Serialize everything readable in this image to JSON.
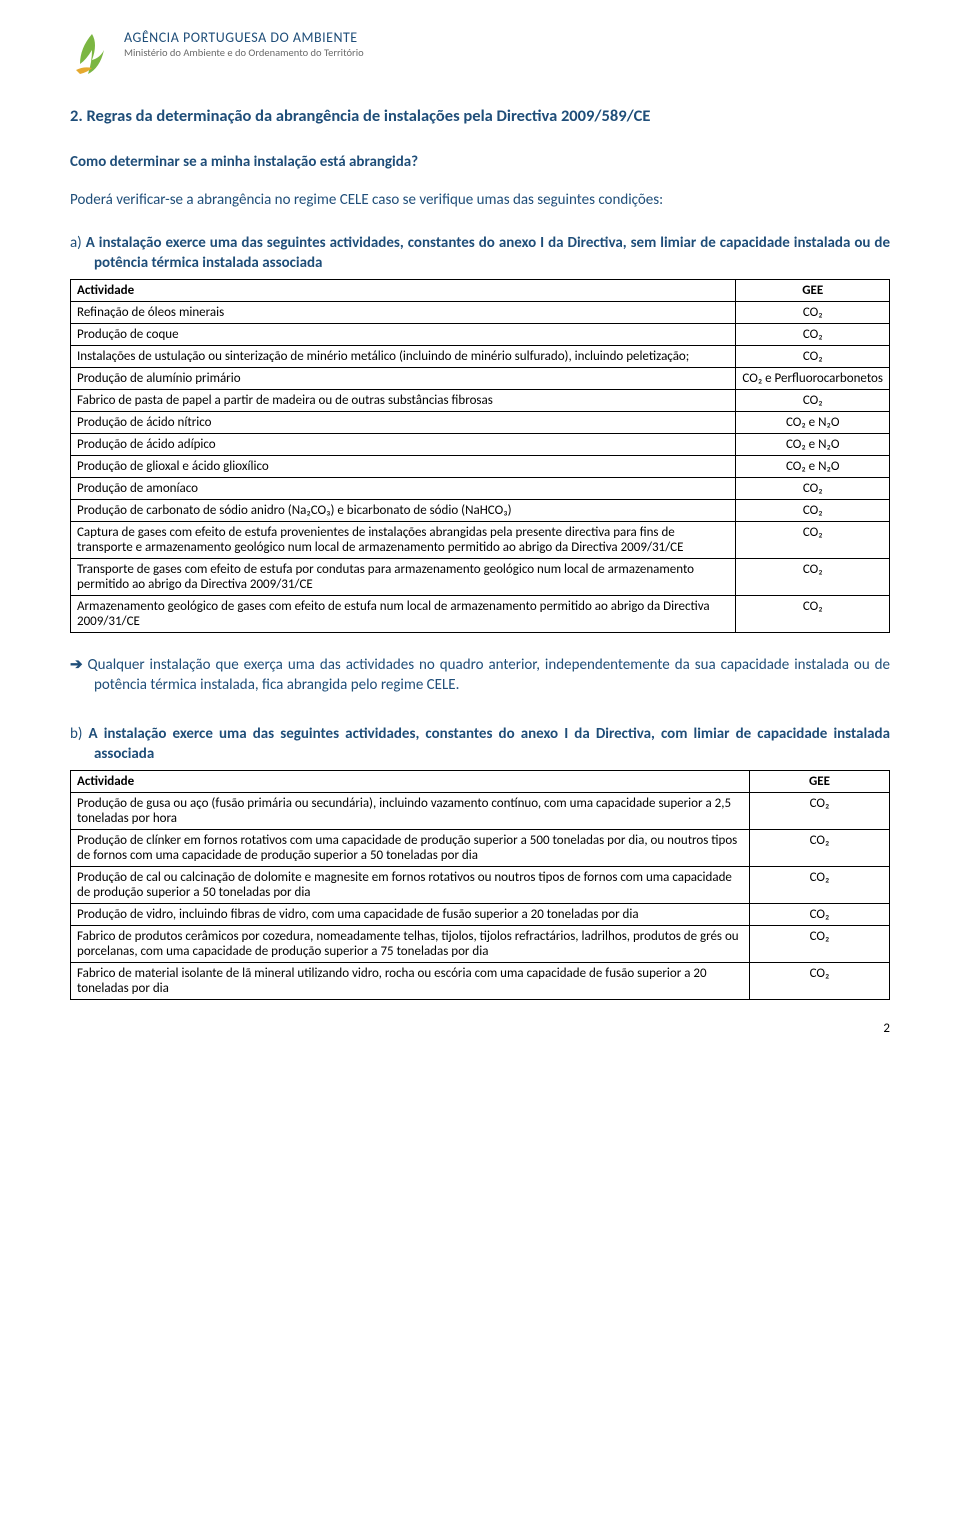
{
  "header": {
    "agency_name": "AGÊNCIA PORTUGUESA DO AMBIENTE",
    "agency_sub": "Ministério do Ambiente e do Ordenamento do Território",
    "logo_colors": {
      "green": "#7bb642",
      "yellow": "#e5a92f"
    }
  },
  "section_title": "2.  Regras da determinação da abrangência de instalações pela Directiva 2009/589/CE",
  "q1": "Como determinar se a minha instalação está abrangida?",
  "intro": "Poderá verificar-se a abrangência no regime CELE caso se verifique umas das seguintes condições:",
  "item_a_prefix": "a) ",
  "item_a": "A instalação exerce uma das seguintes actividades, constantes do anexo I da Directiva, sem limiar de capacidade instalada ou de potência térmica instalada associada",
  "table1": {
    "col_activity": "Actividade",
    "col_gee": "GEE",
    "rows": [
      {
        "a": "Refinação de óleos minerais",
        "g": "CO₂"
      },
      {
        "a": "Produção de coque",
        "g": "CO₂"
      },
      {
        "a": "Instalações de ustulação ou sinterização de minério metálico (incluindo de minério sulfurado), incluindo peletização;",
        "g": "CO₂"
      },
      {
        "a": "Produção de alumínio primário",
        "g": "CO₂ e Perfluorocarbonetos"
      },
      {
        "a": "Fabrico de pasta de papel a partir de madeira ou de outras substâncias fibrosas",
        "g": "CO₂"
      },
      {
        "a": "Produção de ácido nítrico",
        "g": "CO₂ e N₂O"
      },
      {
        "a": "Produção de ácido adípico",
        "g": "CO₂ e N₂O"
      },
      {
        "a": "Produção de glioxal e ácido glioxílico",
        "g": "CO₂ e N₂O"
      },
      {
        "a": "Produção de amoníaco",
        "g": "CO₂"
      },
      {
        "a": "Produção de carbonato de sódio anidro (Na₂CO₃) e bicarbonato de sódio (NaHCO₃)",
        "g": "CO₂"
      },
      {
        "a": "Captura de gases com efeito de estufa provenientes de instalações abrangidas pela presente directiva para fins de transporte e armazenamento geológico num local de armazenamento permitido ao abrigo da Directiva 2009/31/CE",
        "g": "CO₂"
      },
      {
        "a": "Transporte de gases com efeito de estufa por condutas para armazenamento geológico num local de armazenamento permitido ao abrigo da Directiva 2009/31/CE",
        "g": "CO₂"
      },
      {
        "a": "Armazenamento geológico de gases com efeito de estufa num local de armazenamento permitido ao abrigo da Directiva 2009/31/CE",
        "g": "CO₂"
      }
    ]
  },
  "conclusion_a": "Qualquer instalação que exerça uma das actividades no quadro anterior, independentemente da sua capacidade instalada ou de potência térmica instalada, fica abrangida pelo regime CELE.",
  "arrow_glyph": "➔ ",
  "item_b_prefix": "b) ",
  "item_b": "A instalação exerce uma das seguintes actividades, constantes do anexo I da Directiva, com limiar de capacidade instalada associada",
  "table2": {
    "col_activity": "Actividade",
    "col_gee": "GEE",
    "rows": [
      {
        "a": "Produção de gusa ou aço (fusão primária ou secundária), incluindo vazamento contínuo, com uma capacidade superior a 2,5 toneladas por hora",
        "g": "CO₂"
      },
      {
        "a": "Produção de clínker em fornos rotativos com uma capacidade de produção superior a 500 toneladas por dia, ou noutros tipos de fornos com uma capacidade de produção superior a 50 toneladas por dia",
        "g": "CO₂"
      },
      {
        "a": "Produção de cal ou calcinação de dolomite e magnesite em fornos rotativos ou noutros tipos de fornos com uma capacidade de produção superior a 50 toneladas por dia",
        "g": "CO₂"
      },
      {
        "a": "Produção de vidro, incluindo fibras de vidro, com uma capacidade de fusão superior a 20 toneladas por dia",
        "g": "CO₂"
      },
      {
        "a": "Fabrico de produtos cerâmicos por cozedura, nomeadamente telhas, tijolos, tijolos refractários, ladrilhos, produtos de grés ou porcelanas, com uma capacidade de produção superior a 75 toneladas por dia",
        "g": "CO₂"
      },
      {
        "a": "Fabrico de material isolante de lã mineral utilizando vidro, rocha ou escória com uma capacidade de fusão superior a 20 toneladas por dia",
        "g": "CO₂"
      }
    ]
  },
  "page_number": "2",
  "colors": {
    "heading": "#1f4e79",
    "body": "#1f4e79",
    "border": "#000000",
    "subgrey": "#6b6b6b"
  },
  "fonts": {
    "body_size_pt": 11,
    "heading_size_pt": 12,
    "table_size_pt": 10
  }
}
